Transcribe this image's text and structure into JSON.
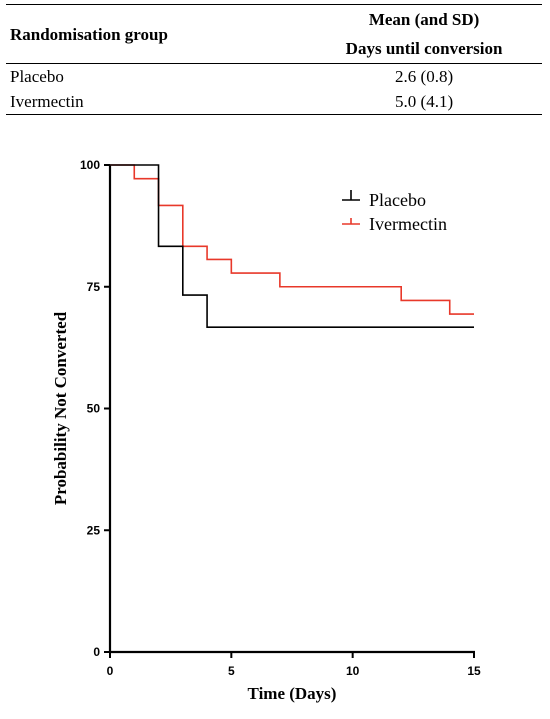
{
  "table": {
    "header_group": "Randomisation group",
    "header_mean_line1": "Mean (and SD)",
    "header_mean_line2": "Days until conversion",
    "rows": [
      {
        "group": "Placebo",
        "mean_sd": "2.6 (0.8)"
      },
      {
        "group": "Ivermectin",
        "mean_sd": "5.0 (4.1)"
      }
    ]
  },
  "chart_data": {
    "type": "line",
    "step": true,
    "title": "",
    "xlabel": "Time (Days)",
    "ylabel": "Probability Not Converted",
    "xlim": [
      0,
      15
    ],
    "ylim": [
      0,
      100
    ],
    "xticks": [
      0,
      5,
      10,
      15
    ],
    "yticks": [
      0,
      25,
      50,
      75,
      100
    ],
    "grid": false,
    "legend_position": "top-right",
    "series": [
      {
        "name": "Placebo",
        "color": "#000000",
        "points": [
          [
            0,
            100
          ],
          [
            2,
            100
          ],
          [
            2,
            83.3
          ],
          [
            3,
            83.3
          ],
          [
            3,
            73.3
          ],
          [
            4,
            73.3
          ],
          [
            4,
            66.7
          ],
          [
            15,
            66.7
          ]
        ]
      },
      {
        "name": "Ivermectin",
        "color": "#e8382a",
        "points": [
          [
            0,
            100
          ],
          [
            1,
            100
          ],
          [
            1,
            97.2
          ],
          [
            2,
            97.2
          ],
          [
            2,
            91.7
          ],
          [
            3,
            91.7
          ],
          [
            3,
            83.3
          ],
          [
            4,
            83.3
          ],
          [
            4,
            80.6
          ],
          [
            5,
            80.6
          ],
          [
            5,
            77.8
          ],
          [
            7,
            77.8
          ],
          [
            7,
            75.0
          ],
          [
            12,
            75.0
          ],
          [
            12,
            72.2
          ],
          [
            14,
            72.2
          ],
          [
            14,
            69.4
          ],
          [
            15,
            69.4
          ]
        ]
      }
    ]
  }
}
